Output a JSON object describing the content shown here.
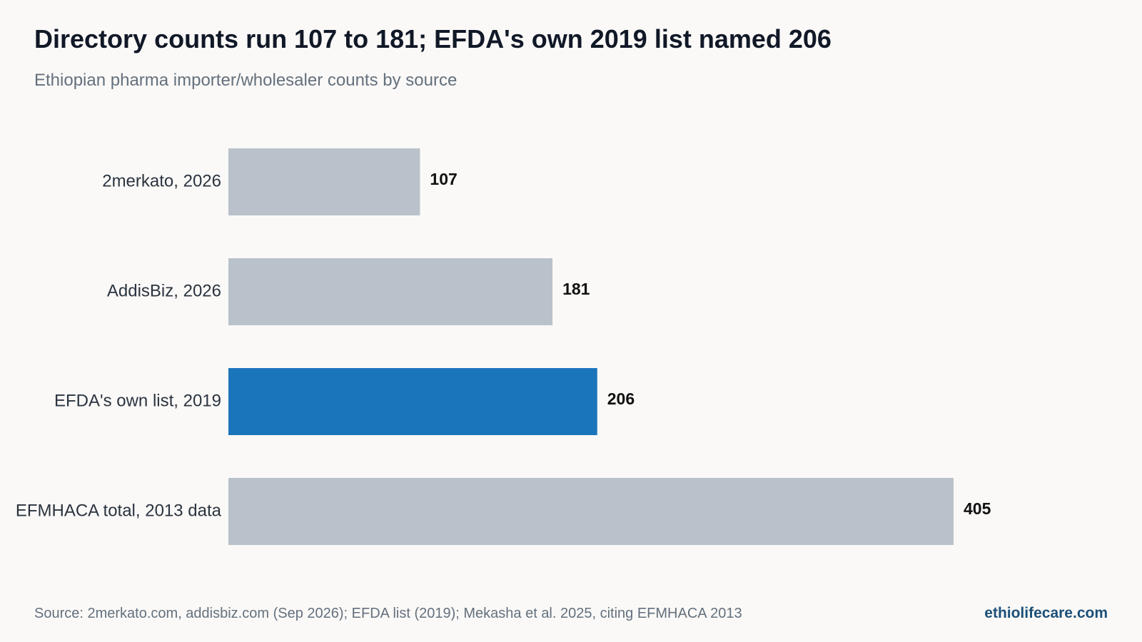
{
  "header": {
    "title": "Directory counts run 107 to 181; EFDA's own 2019 list named 206",
    "subtitle": "Ethiopian pharma importer/wholesaler counts by source"
  },
  "chart_data": {
    "type": "bar",
    "orientation": "horizontal",
    "title": "Directory counts run 107 to 181; EFDA's own 2019 list named 206",
    "subtitle": "Ethiopian pharma importer/wholesaler counts by source",
    "xlabel": "",
    "ylabel": "",
    "categories": [
      "2merkato, 2026",
      "AddisBiz, 2026",
      "EFDA's own list, 2019",
      "EFMHACA total, 2013 data"
    ],
    "values": [
      107,
      181,
      206,
      405
    ],
    "value_labels": [
      "107",
      "181",
      "206",
      "405"
    ],
    "highlight_index": 2,
    "colors": {
      "default": "#b9c2ca",
      "highlight": "#1b75bb"
    },
    "xlim": [
      0,
      405
    ],
    "grid": false,
    "legend": "none"
  },
  "footer": {
    "source": "Source: 2merkato.com, addisbiz.com (Sep 2026); EFDA list (2019); Mekasha et al. 2025, citing EFMHACA 2013",
    "brand": "ethiolifecare.com"
  }
}
